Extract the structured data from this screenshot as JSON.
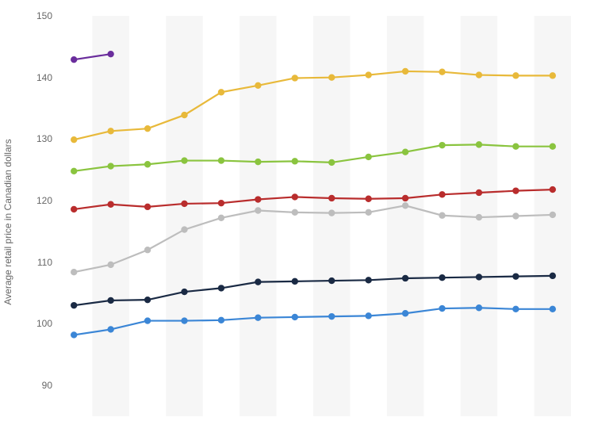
{
  "chart": {
    "type": "line",
    "y_axis_label": "Average retail price in Canadian dollars",
    "label_fontsize": 12,
    "label_color": "#666666",
    "background_color": "#ffffff",
    "band_color": "#f6f6f6",
    "ylim": [
      85,
      150
    ],
    "ytick_step": 10,
    "yticks": [
      90,
      100,
      110,
      120,
      130,
      140,
      150
    ],
    "tick_fontsize": 12,
    "tick_color": "#666666",
    "x_count": 14,
    "line_width": 2.2,
    "marker_radius": 3.2,
    "series": [
      {
        "name": "series-purple",
        "color": "#6a2d9c",
        "values": [
          142.9,
          143.8,
          null,
          null,
          null,
          null,
          null,
          null,
          null,
          null,
          null,
          null,
          null,
          null
        ]
      },
      {
        "name": "series-gold",
        "color": "#e8b93a",
        "values": [
          129.9,
          131.3,
          131.7,
          133.9,
          137.6,
          138.7,
          139.9,
          140.0,
          140.4,
          141.0,
          140.9,
          140.4,
          140.3,
          140.3
        ]
      },
      {
        "name": "series-green",
        "color": "#8ac43f",
        "values": [
          124.8,
          125.6,
          125.9,
          126.5,
          126.5,
          126.3,
          126.4,
          126.2,
          127.1,
          127.9,
          129.0,
          129.1,
          128.8,
          128.8
        ]
      },
      {
        "name": "series-red",
        "color": "#b92d2d",
        "values": [
          118.6,
          119.4,
          119.0,
          119.5,
          119.6,
          120.2,
          120.6,
          120.4,
          120.3,
          120.4,
          121.0,
          121.3,
          121.6,
          121.8
        ]
      },
      {
        "name": "series-gray",
        "color": "#bdbdbd",
        "values": [
          108.4,
          109.6,
          112.0,
          115.3,
          117.2,
          118.4,
          118.1,
          118.0,
          118.1,
          119.2,
          117.6,
          117.3,
          117.5,
          117.7
        ]
      },
      {
        "name": "series-navy",
        "color": "#1a2a44",
        "values": [
          103.0,
          103.8,
          103.9,
          105.2,
          105.8,
          106.8,
          106.9,
          107.0,
          107.1,
          107.4,
          107.5,
          107.6,
          107.7,
          107.8
        ]
      },
      {
        "name": "series-blue",
        "color": "#3b86d6",
        "values": [
          98.2,
          99.1,
          100.5,
          100.5,
          100.6,
          101.0,
          101.1,
          101.2,
          101.3,
          101.7,
          102.5,
          102.6,
          102.4,
          102.4
        ]
      }
    ]
  }
}
